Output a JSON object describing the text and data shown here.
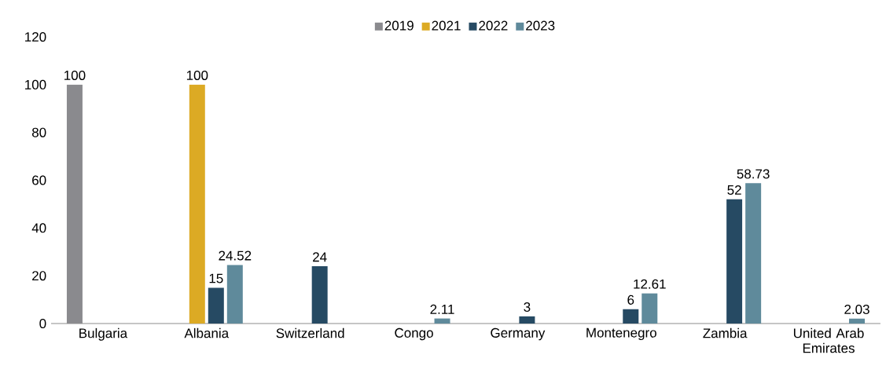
{
  "chart_data": {
    "type": "bar",
    "categories": [
      "Bulgaria",
      "Albania",
      "Switzerland",
      "Congo",
      "Germany",
      "Montenegro",
      "Zambia",
      "United Arab Emirates"
    ],
    "series": [
      {
        "name": "2019",
        "color": "#8a8a8e",
        "values": [
          100,
          null,
          null,
          null,
          null,
          null,
          null,
          null
        ]
      },
      {
        "name": "2021",
        "color": "#dcaa24",
        "values": [
          null,
          100,
          null,
          null,
          null,
          null,
          null,
          null
        ]
      },
      {
        "name": "2022",
        "color": "#264a63",
        "values": [
          null,
          15,
          24,
          null,
          3,
          6,
          52,
          null
        ]
      },
      {
        "name": "2023",
        "color": "#5f8a9b",
        "values": [
          null,
          24.52,
          null,
          2.11,
          null,
          12.61,
          58.73,
          2.03
        ]
      }
    ],
    "ylim": [
      0,
      120
    ],
    "yticks": [
      0,
      20,
      40,
      60,
      80,
      100,
      120
    ],
    "data_labels": true,
    "legend": "top",
    "grid": false
  }
}
